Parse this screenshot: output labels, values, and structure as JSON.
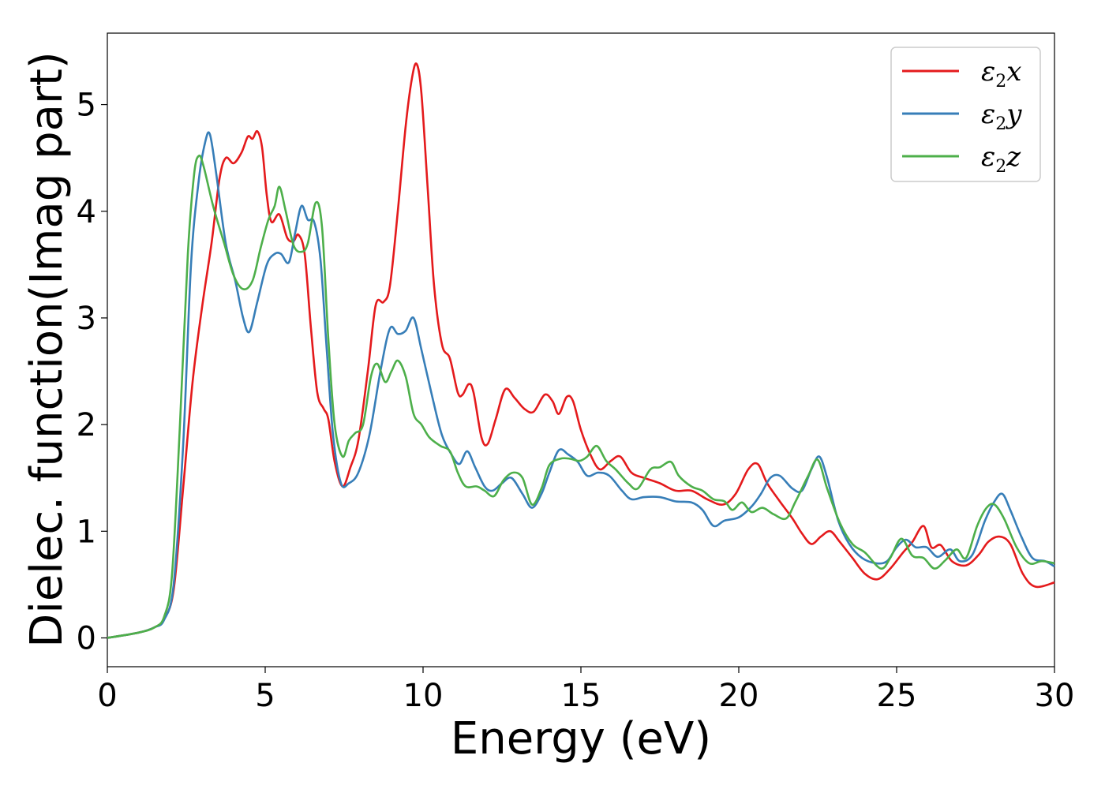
{
  "chart_data": {
    "type": "line",
    "xlabel": "Energy (eV)",
    "ylabel": "Dielec. function(Imag part)",
    "xlim": [
      0,
      30
    ],
    "ylim": [
      -0.27,
      5.67
    ],
    "xticks": [
      "0",
      "5",
      "10",
      "15",
      "20",
      "25",
      "30"
    ],
    "yticks": [
      "0",
      "1",
      "2",
      "3",
      "4",
      "5"
    ],
    "grid": false,
    "legend_position": "top-right",
    "series": [
      {
        "name": "ε2x",
        "legend": {
          "symbol": "ε",
          "sub": "2",
          "comp": "x"
        },
        "color": "#e41a1c",
        "points": [
          [
            0,
            0
          ],
          [
            1,
            0.05
          ],
          [
            1.5,
            0.1
          ],
          [
            1.8,
            0.18
          ],
          [
            2.1,
            0.45
          ],
          [
            2.4,
            1.4
          ],
          [
            2.7,
            2.4
          ],
          [
            3.0,
            3.1
          ],
          [
            3.3,
            3.7
          ],
          [
            3.55,
            4.3
          ],
          [
            3.75,
            4.5
          ],
          [
            4.0,
            4.45
          ],
          [
            4.25,
            4.55
          ],
          [
            4.45,
            4.7
          ],
          [
            4.6,
            4.68
          ],
          [
            4.75,
            4.75
          ],
          [
            4.9,
            4.6
          ],
          [
            5.05,
            4.15
          ],
          [
            5.2,
            3.9
          ],
          [
            5.45,
            3.97
          ],
          [
            5.7,
            3.75
          ],
          [
            5.9,
            3.72
          ],
          [
            6.05,
            3.78
          ],
          [
            6.25,
            3.6
          ],
          [
            6.45,
            2.9
          ],
          [
            6.65,
            2.3
          ],
          [
            6.85,
            2.15
          ],
          [
            7.0,
            2.05
          ],
          [
            7.2,
            1.65
          ],
          [
            7.45,
            1.42
          ],
          [
            7.7,
            1.6
          ],
          [
            7.95,
            1.85
          ],
          [
            8.25,
            2.5
          ],
          [
            8.5,
            3.12
          ],
          [
            8.75,
            3.15
          ],
          [
            8.95,
            3.3
          ],
          [
            9.2,
            4.0
          ],
          [
            9.45,
            4.8
          ],
          [
            9.65,
            5.25
          ],
          [
            9.8,
            5.38
          ],
          [
            9.95,
            5.1
          ],
          [
            10.15,
            4.2
          ],
          [
            10.35,
            3.3
          ],
          [
            10.6,
            2.75
          ],
          [
            10.85,
            2.62
          ],
          [
            11.1,
            2.3
          ],
          [
            11.25,
            2.28
          ],
          [
            11.45,
            2.38
          ],
          [
            11.6,
            2.3
          ],
          [
            11.85,
            1.88
          ],
          [
            12.05,
            1.82
          ],
          [
            12.3,
            2.05
          ],
          [
            12.6,
            2.33
          ],
          [
            12.9,
            2.25
          ],
          [
            13.2,
            2.15
          ],
          [
            13.5,
            2.12
          ],
          [
            13.85,
            2.28
          ],
          [
            14.1,
            2.22
          ],
          [
            14.3,
            2.1
          ],
          [
            14.55,
            2.26
          ],
          [
            14.75,
            2.22
          ],
          [
            15.0,
            1.95
          ],
          [
            15.3,
            1.72
          ],
          [
            15.6,
            1.58
          ],
          [
            15.95,
            1.66
          ],
          [
            16.25,
            1.7
          ],
          [
            16.6,
            1.55
          ],
          [
            17.0,
            1.5
          ],
          [
            17.5,
            1.45
          ],
          [
            18.0,
            1.38
          ],
          [
            18.5,
            1.38
          ],
          [
            19.0,
            1.3
          ],
          [
            19.5,
            1.25
          ],
          [
            19.9,
            1.35
          ],
          [
            20.3,
            1.58
          ],
          [
            20.6,
            1.63
          ],
          [
            20.9,
            1.45
          ],
          [
            21.3,
            1.28
          ],
          [
            21.7,
            1.12
          ],
          [
            22.0,
            0.98
          ],
          [
            22.3,
            0.88
          ],
          [
            22.6,
            0.95
          ],
          [
            22.9,
            1.0
          ],
          [
            23.2,
            0.9
          ],
          [
            23.6,
            0.75
          ],
          [
            24.0,
            0.6
          ],
          [
            24.4,
            0.55
          ],
          [
            24.8,
            0.65
          ],
          [
            25.2,
            0.8
          ],
          [
            25.5,
            0.9
          ],
          [
            25.85,
            1.05
          ],
          [
            26.1,
            0.85
          ],
          [
            26.4,
            0.87
          ],
          [
            26.75,
            0.72
          ],
          [
            27.2,
            0.68
          ],
          [
            27.6,
            0.78
          ],
          [
            27.9,
            0.9
          ],
          [
            28.25,
            0.95
          ],
          [
            28.6,
            0.88
          ],
          [
            29.0,
            0.6
          ],
          [
            29.4,
            0.48
          ],
          [
            30.0,
            0.52
          ]
        ]
      },
      {
        "name": "ε2y",
        "legend": {
          "symbol": "ε",
          "sub": "2",
          "comp": "y"
        },
        "color": "#377eb8",
        "points": [
          [
            0,
            0
          ],
          [
            1,
            0.05
          ],
          [
            1.5,
            0.1
          ],
          [
            1.8,
            0.17
          ],
          [
            2.1,
            0.5
          ],
          [
            2.4,
            1.8
          ],
          [
            2.65,
            3.5
          ],
          [
            2.9,
            4.3
          ],
          [
            3.1,
            4.65
          ],
          [
            3.25,
            4.72
          ],
          [
            3.45,
            4.35
          ],
          [
            3.75,
            3.7
          ],
          [
            4.05,
            3.35
          ],
          [
            4.3,
            3.0
          ],
          [
            4.5,
            2.87
          ],
          [
            4.75,
            3.15
          ],
          [
            5.05,
            3.5
          ],
          [
            5.3,
            3.6
          ],
          [
            5.5,
            3.6
          ],
          [
            5.75,
            3.52
          ],
          [
            5.95,
            3.8
          ],
          [
            6.15,
            4.05
          ],
          [
            6.35,
            3.92
          ],
          [
            6.55,
            3.9
          ],
          [
            6.75,
            3.55
          ],
          [
            6.95,
            2.7
          ],
          [
            7.15,
            1.9
          ],
          [
            7.4,
            1.45
          ],
          [
            7.65,
            1.45
          ],
          [
            7.95,
            1.55
          ],
          [
            8.3,
            1.9
          ],
          [
            8.65,
            2.5
          ],
          [
            8.95,
            2.9
          ],
          [
            9.2,
            2.85
          ],
          [
            9.45,
            2.88
          ],
          [
            9.7,
            3.0
          ],
          [
            9.95,
            2.7
          ],
          [
            10.3,
            2.25
          ],
          [
            10.6,
            1.9
          ],
          [
            10.9,
            1.72
          ],
          [
            11.15,
            1.63
          ],
          [
            11.4,
            1.75
          ],
          [
            11.65,
            1.6
          ],
          [
            11.95,
            1.42
          ],
          [
            12.2,
            1.38
          ],
          [
            12.5,
            1.45
          ],
          [
            12.8,
            1.5
          ],
          [
            13.15,
            1.35
          ],
          [
            13.45,
            1.22
          ],
          [
            13.75,
            1.35
          ],
          [
            14.0,
            1.55
          ],
          [
            14.3,
            1.76
          ],
          [
            14.6,
            1.72
          ],
          [
            14.9,
            1.65
          ],
          [
            15.2,
            1.52
          ],
          [
            15.55,
            1.55
          ],
          [
            15.9,
            1.52
          ],
          [
            16.3,
            1.38
          ],
          [
            16.6,
            1.3
          ],
          [
            17.0,
            1.32
          ],
          [
            17.5,
            1.32
          ],
          [
            18.0,
            1.28
          ],
          [
            18.5,
            1.27
          ],
          [
            18.85,
            1.2
          ],
          [
            19.2,
            1.05
          ],
          [
            19.55,
            1.1
          ],
          [
            20.0,
            1.13
          ],
          [
            20.4,
            1.23
          ],
          [
            20.7,
            1.35
          ],
          [
            21.0,
            1.5
          ],
          [
            21.3,
            1.52
          ],
          [
            21.7,
            1.4
          ],
          [
            22.0,
            1.38
          ],
          [
            22.3,
            1.58
          ],
          [
            22.55,
            1.7
          ],
          [
            22.8,
            1.5
          ],
          [
            23.15,
            1.1
          ],
          [
            23.5,
            0.88
          ],
          [
            23.9,
            0.75
          ],
          [
            24.35,
            0.7
          ],
          [
            24.7,
            0.72
          ],
          [
            25.0,
            0.85
          ],
          [
            25.3,
            0.92
          ],
          [
            25.6,
            0.85
          ],
          [
            25.95,
            0.85
          ],
          [
            26.3,
            0.76
          ],
          [
            26.7,
            0.83
          ],
          [
            27.0,
            0.72
          ],
          [
            27.4,
            0.78
          ],
          [
            27.8,
            1.1
          ],
          [
            28.1,
            1.28
          ],
          [
            28.35,
            1.35
          ],
          [
            28.6,
            1.2
          ],
          [
            28.95,
            0.95
          ],
          [
            29.3,
            0.75
          ],
          [
            29.7,
            0.72
          ],
          [
            30.0,
            0.67
          ]
        ]
      },
      {
        "name": "ε2z",
        "legend": {
          "symbol": "ε",
          "sub": "2",
          "comp": "z"
        },
        "color": "#4daf4a",
        "points": [
          [
            0,
            0
          ],
          [
            1,
            0.05
          ],
          [
            1.5,
            0.1
          ],
          [
            1.8,
            0.2
          ],
          [
            2.05,
            0.6
          ],
          [
            2.3,
            2.0
          ],
          [
            2.55,
            3.6
          ],
          [
            2.75,
            4.35
          ],
          [
            2.9,
            4.52
          ],
          [
            3.05,
            4.42
          ],
          [
            3.35,
            4.05
          ],
          [
            3.7,
            3.7
          ],
          [
            4.0,
            3.4
          ],
          [
            4.3,
            3.27
          ],
          [
            4.6,
            3.35
          ],
          [
            4.85,
            3.65
          ],
          [
            5.1,
            3.92
          ],
          [
            5.3,
            4.05
          ],
          [
            5.45,
            4.23
          ],
          [
            5.65,
            4.0
          ],
          [
            5.9,
            3.68
          ],
          [
            6.15,
            3.62
          ],
          [
            6.35,
            3.7
          ],
          [
            6.6,
            4.08
          ],
          [
            6.8,
            3.85
          ],
          [
            7.0,
            2.8
          ],
          [
            7.2,
            2.0
          ],
          [
            7.45,
            1.7
          ],
          [
            7.65,
            1.85
          ],
          [
            7.85,
            1.92
          ],
          [
            8.1,
            2.0
          ],
          [
            8.35,
            2.45
          ],
          [
            8.55,
            2.57
          ],
          [
            8.8,
            2.4
          ],
          [
            9.0,
            2.5
          ],
          [
            9.2,
            2.6
          ],
          [
            9.45,
            2.45
          ],
          [
            9.7,
            2.1
          ],
          [
            9.95,
            2.0
          ],
          [
            10.2,
            1.88
          ],
          [
            10.55,
            1.8
          ],
          [
            10.85,
            1.75
          ],
          [
            11.1,
            1.55
          ],
          [
            11.35,
            1.42
          ],
          [
            11.7,
            1.42
          ],
          [
            11.95,
            1.38
          ],
          [
            12.25,
            1.33
          ],
          [
            12.55,
            1.48
          ],
          [
            12.85,
            1.55
          ],
          [
            13.15,
            1.5
          ],
          [
            13.45,
            1.25
          ],
          [
            13.75,
            1.4
          ],
          [
            14.0,
            1.62
          ],
          [
            14.35,
            1.68
          ],
          [
            14.65,
            1.68
          ],
          [
            14.95,
            1.66
          ],
          [
            15.2,
            1.7
          ],
          [
            15.5,
            1.8
          ],
          [
            15.8,
            1.66
          ],
          [
            16.1,
            1.58
          ],
          [
            16.5,
            1.45
          ],
          [
            16.8,
            1.4
          ],
          [
            17.2,
            1.58
          ],
          [
            17.5,
            1.6
          ],
          [
            17.85,
            1.65
          ],
          [
            18.1,
            1.52
          ],
          [
            18.5,
            1.42
          ],
          [
            18.85,
            1.38
          ],
          [
            19.2,
            1.3
          ],
          [
            19.55,
            1.28
          ],
          [
            19.8,
            1.2
          ],
          [
            20.1,
            1.27
          ],
          [
            20.4,
            1.18
          ],
          [
            20.75,
            1.22
          ],
          [
            21.1,
            1.16
          ],
          [
            21.5,
            1.12
          ],
          [
            21.8,
            1.28
          ],
          [
            22.2,
            1.52
          ],
          [
            22.5,
            1.67
          ],
          [
            22.8,
            1.4
          ],
          [
            23.2,
            1.08
          ],
          [
            23.6,
            0.88
          ],
          [
            24.0,
            0.8
          ],
          [
            24.5,
            0.65
          ],
          [
            24.8,
            0.75
          ],
          [
            25.15,
            0.93
          ],
          [
            25.5,
            0.77
          ],
          [
            25.85,
            0.75
          ],
          [
            26.2,
            0.65
          ],
          [
            26.55,
            0.73
          ],
          [
            26.9,
            0.83
          ],
          [
            27.2,
            0.75
          ],
          [
            27.55,
            1.05
          ],
          [
            27.85,
            1.22
          ],
          [
            28.1,
            1.25
          ],
          [
            28.4,
            1.12
          ],
          [
            28.8,
            0.85
          ],
          [
            29.2,
            0.7
          ],
          [
            29.6,
            0.72
          ],
          [
            30.0,
            0.7
          ]
        ]
      }
    ]
  }
}
